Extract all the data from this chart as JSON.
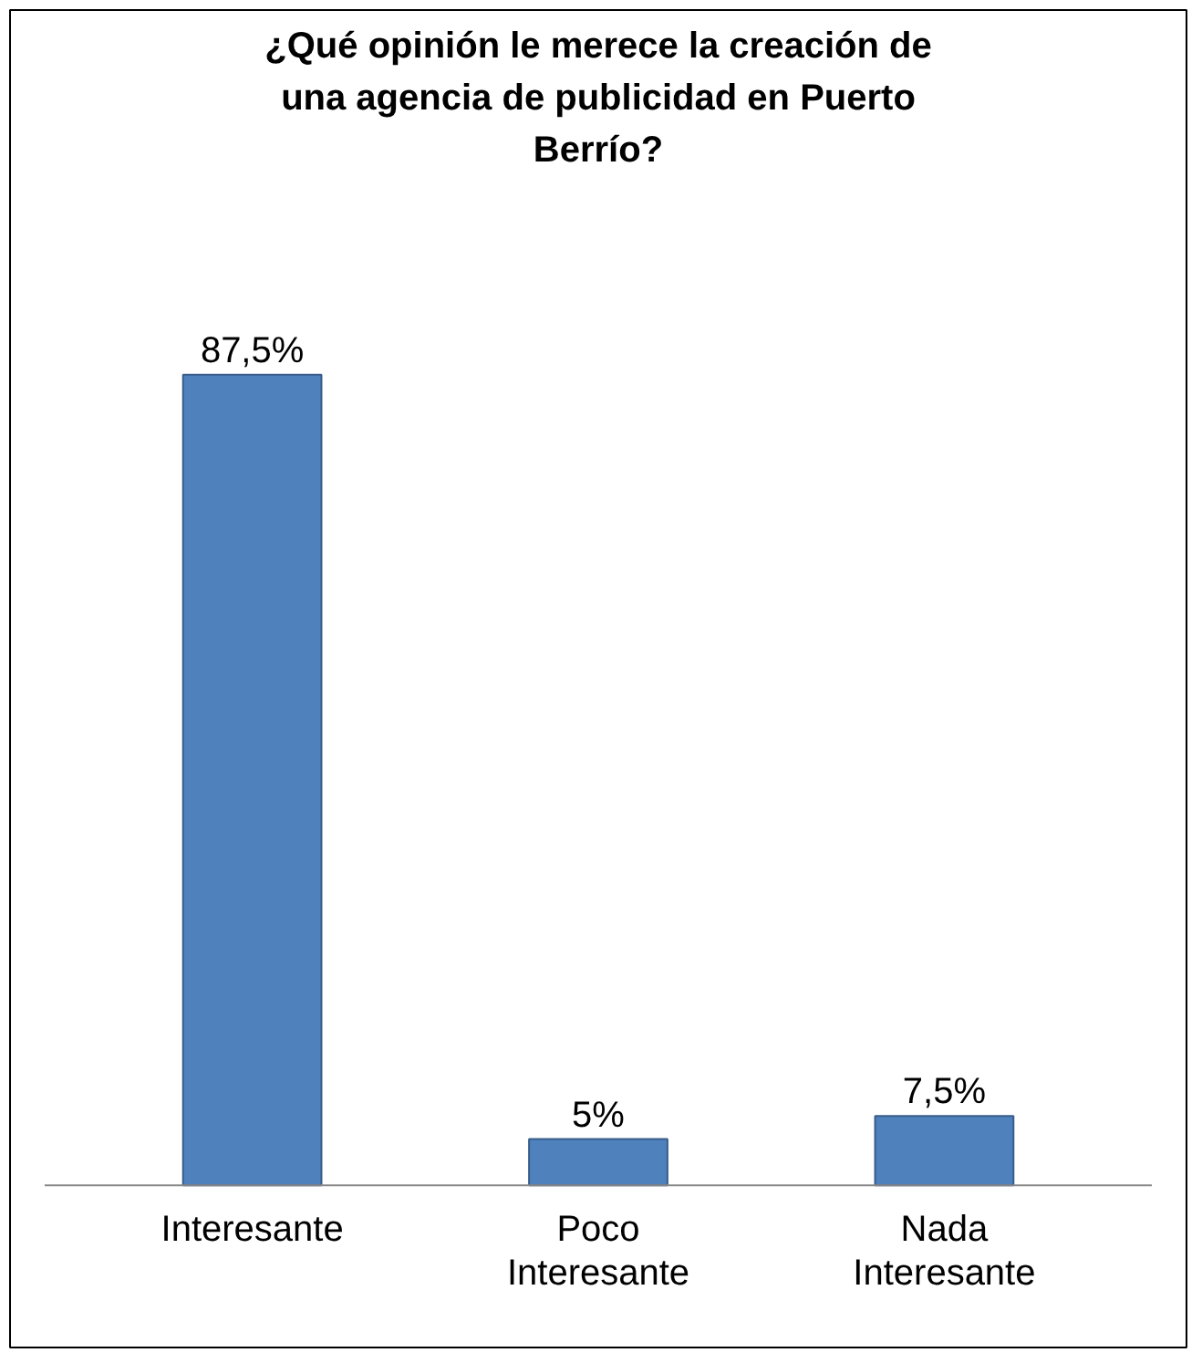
{
  "chart_data": {
    "type": "bar",
    "title": "¿Qué opinión le merece la creación de una agencia de publicidad en Puerto Berrío?",
    "categories": [
      "Interesante",
      "Poco Interesante",
      "Nada Interesante"
    ],
    "values": [
      87.5,
      5,
      7.5
    ],
    "value_labels": [
      "87,5%",
      "5%",
      "7,5%"
    ],
    "color": "#4f81bd",
    "grid": false
  }
}
